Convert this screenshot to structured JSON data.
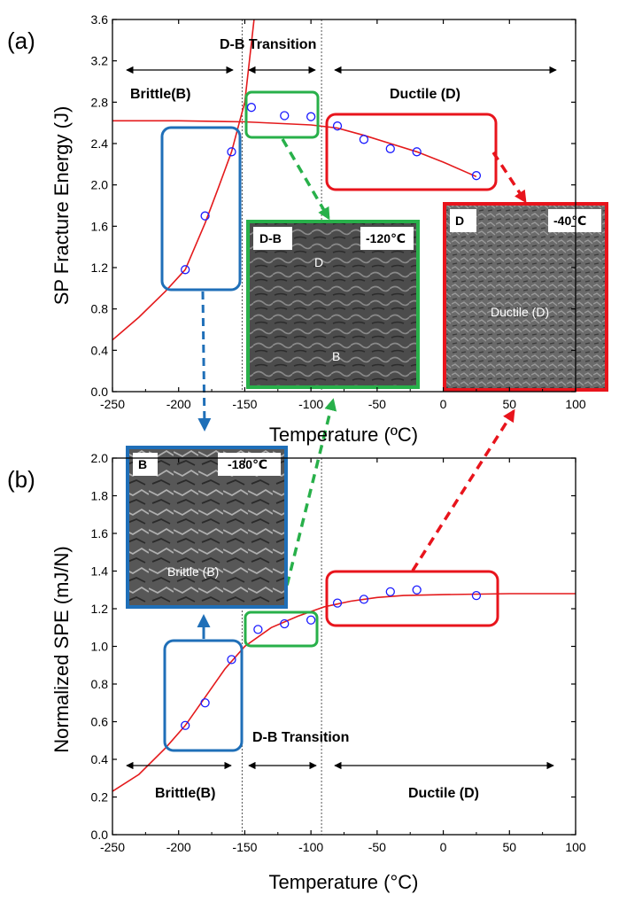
{
  "colors": {
    "fit": "#e41a1c",
    "marker": "#1a1aff",
    "brittle_box": "#1f6fb8",
    "transition_box": "#28b04a",
    "ductile_box": "#e8141c",
    "sem_bg": "#5a5a5a"
  },
  "chart_data": [
    {
      "type": "scatter",
      "panel_label": "(a)",
      "xlabel": "Temperature (ºC)",
      "ylabel": "SP Fracture Energy (J)",
      "xlim": [
        -250,
        100
      ],
      "ylim": [
        0.0,
        3.6
      ],
      "x_ticks": [
        "-250",
        "-200",
        "-150",
        "-100",
        "-50",
        "0",
        "50",
        "100"
      ],
      "y_ticks": [
        "0.0",
        "0.4",
        "0.8",
        "1.2",
        "1.6",
        "2.0",
        "2.4",
        "2.8",
        "3.2",
        "3.6"
      ],
      "x": [
        -195,
        -180,
        -160,
        -145,
        -120,
        -100,
        -80,
        -60,
        -40,
        -20,
        25
      ],
      "y": [
        1.18,
        1.7,
        2.32,
        2.75,
        2.67,
        2.66,
        2.57,
        2.44,
        2.35,
        2.32,
        2.09
      ],
      "fit_lower_shelf": {
        "x": [
          -250,
          -230,
          -210,
          -195,
          -180,
          -170,
          -160,
          -150,
          -143
        ],
        "y": [
          0.5,
          0.72,
          0.97,
          1.18,
          1.63,
          1.97,
          2.32,
          2.8,
          3.6
        ]
      },
      "fit_upper_shelf": {
        "x": [
          -250,
          -200,
          -150,
          -100,
          -80,
          -60,
          -40,
          -20,
          0,
          25
        ],
        "y": [
          2.62,
          2.62,
          2.61,
          2.58,
          2.55,
          2.48,
          2.4,
          2.32,
          2.22,
          2.08
        ]
      },
      "transition_lines_x": [
        -152,
        -92
      ],
      "regions": {
        "brittle": "Brittle(B)",
        "transition": "D-B Transition",
        "ductile": "Ductile  (D)"
      },
      "insets": {
        "transition": {
          "code": "D-B",
          "temp": "-120℃",
          "label_d": "D",
          "label_b": "B"
        },
        "ductile": {
          "code": "D",
          "temp": "-40℃",
          "text": "Ductile (D)"
        }
      }
    },
    {
      "type": "scatter",
      "panel_label": "(b)",
      "xlabel": "Temperature (°C)",
      "ylabel": "Normalized SPE (mJ/N)",
      "xlim": [
        -250,
        100
      ],
      "ylim": [
        0.0,
        2.0
      ],
      "x_ticks": [
        "-250",
        "-200",
        "-150",
        "-100",
        "-50",
        "0",
        "50",
        "100"
      ],
      "y_ticks": [
        "0.0",
        "0.2",
        "0.4",
        "0.6",
        "0.8",
        "1.0",
        "1.2",
        "1.4",
        "1.6",
        "1.8",
        "2.0"
      ],
      "x": [
        -195,
        -180,
        -160,
        -140,
        -120,
        -100,
        -80,
        -60,
        -40,
        -20,
        25
      ],
      "y": [
        0.58,
        0.7,
        0.93,
        1.09,
        1.12,
        1.14,
        1.23,
        1.25,
        1.29,
        1.3,
        1.27
      ],
      "fit": {
        "x": [
          -250,
          -230,
          -210,
          -195,
          -180,
          -165,
          -150,
          -130,
          -110,
          -90,
          -70,
          -50,
          -30,
          0,
          50,
          100
        ],
        "y": [
          0.23,
          0.32,
          0.46,
          0.58,
          0.73,
          0.88,
          1.0,
          1.1,
          1.16,
          1.21,
          1.24,
          1.26,
          1.27,
          1.275,
          1.28,
          1.28
        ]
      },
      "transition_lines_x": [
        -152,
        -92
      ],
      "regions": {
        "brittle": "Brittle(B)",
        "transition": "D-B Transition",
        "ductile": "Ductile  (D)"
      },
      "insets": {
        "brittle": {
          "code": "B",
          "temp": "-180℃",
          "text": "Brittle (B)"
        }
      }
    }
  ]
}
